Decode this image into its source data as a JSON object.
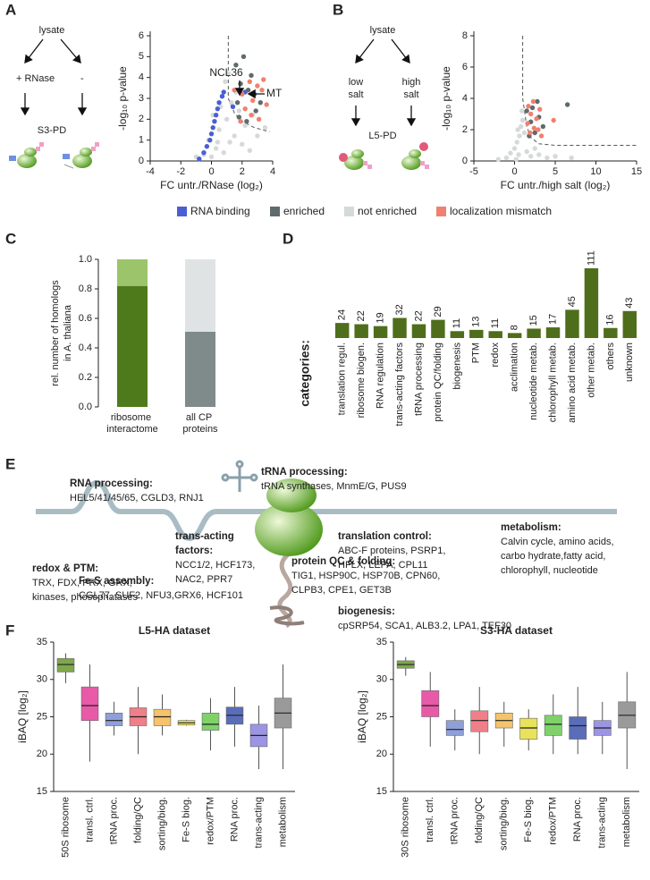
{
  "panel_labels": [
    "A",
    "B",
    "C",
    "D",
    "E",
    "F"
  ],
  "diagram_a": {
    "top": "lysate",
    "left": "+ RNase",
    "right": "-",
    "bottom": "S3-PD"
  },
  "diagram_b": {
    "top": "lysate",
    "left": [
      "low",
      "salt"
    ],
    "right": [
      "high",
      "salt"
    ],
    "bottom": "L5-PD"
  },
  "diagram_e": {
    "nodes": [
      {
        "title": [
          "RNA processing:"
        ],
        "body": [
          "HEL5/41/45/65, CGLD3, RNJ1"
        ]
      },
      {
        "title": [
          "tRNA processing:"
        ],
        "body": [
          "tRNA synthases, MnmE/G, PUS9"
        ]
      },
      {
        "title": [
          "metabolism:"
        ],
        "body": [
          "Calvin cycle, amino acids,",
          "carbo hydrate,fatty acid,",
          "chlorophyll, nucleotide"
        ]
      },
      {
        "title": [
          "trans-acting",
          "factors:"
        ],
        "body": [
          "NCC1/2, HCF173,",
          "NAC2, PPR7"
        ]
      },
      {
        "title": [
          "translation control:"
        ],
        "body": [
          "ABC-F proteins, PSRP1,",
          "HFLX, LEPA, CPL11"
        ]
      },
      {
        "title": [
          "redox & PTM:"
        ],
        "body": [
          "TRX, FDX, PRX, GRX,",
          "kinases, phosophatases"
        ]
      },
      {
        "title": [
          "protein QC & folding:"
        ],
        "body": [
          "TIG1, HSP90C, HSP70B, CPN60,",
          "CLPB3, CPE1, GET3B"
        ]
      },
      {
        "title": [
          "Fe-S assembly:"
        ],
        "body": [
          "CGL77, SUF2, NFU3,GRX6, HCF101"
        ]
      },
      {
        "title": [
          "biogenesis:"
        ],
        "body": [
          "cpSRP54, SCA1, ALB3.2, LPA1, TEF30"
        ]
      }
    ]
  },
  "chart_data": [
    {
      "type": "scatter",
      "xlabel": "FC untr./RNase (log₂)",
      "ylabel": "-log₁₀ p-value",
      "xlim": [
        -4,
        4
      ],
      "xticks": [
        -4,
        -2,
        0,
        2,
        4
      ],
      "ylim": [
        0,
        6
      ],
      "yticks": [
        0,
        1,
        2,
        3,
        4,
        5,
        6
      ],
      "annotations": [
        "NCL36",
        "MT"
      ],
      "threshold": {
        "x": [
          1.1,
          1.1,
          1.5,
          2,
          2.8,
          3.8
        ],
        "y": [
          6,
          3,
          2.3,
          1.9,
          1.6,
          1.4
        ]
      },
      "series": [
        {
          "name": "RNA binding",
          "color": "#4a5fd4",
          "x": [
            -0.8,
            -0.5,
            -0.3,
            -0.1,
            0,
            0.1,
            0.2,
            0.3,
            0.4,
            0.5,
            0.7,
            0.8,
            2.2,
            2.8,
            1.4
          ],
          "y": [
            0.1,
            0.4,
            0.7,
            1.0,
            1.3,
            1.6,
            1.9,
            2.2,
            2.5,
            2.8,
            3.1,
            3.3,
            3.3,
            3.2,
            2.6
          ]
        },
        {
          "name": "enriched",
          "color": "#5f6b6b",
          "x": [
            2.1,
            1.6,
            1.9,
            2.4,
            1.7,
            2.9,
            2.3,
            3.2,
            2.6,
            1.8
          ],
          "y": [
            5,
            4.6,
            3.7,
            3.4,
            2.8,
            2.4,
            1.9,
            2.8,
            4.1,
            2.1
          ]
        },
        {
          "name": "not enriched",
          "color": "#d5d9d9",
          "x": [
            -0.5,
            0,
            0.3,
            0.8,
            1.2,
            1.5,
            2,
            2.5,
            0.5,
            1,
            1.3,
            0.7,
            1.8,
            2.2,
            -0.2,
            0.1,
            0.9,
            1.6,
            3,
            3.5,
            0.4,
            -1,
            2.7,
            1.1,
            0.6
          ],
          "y": [
            0.3,
            0.2,
            0.6,
            0.4,
            0.9,
            1.2,
            0.8,
            0.5,
            1.5,
            2,
            2.8,
            3.1,
            2.4,
            1.7,
            1,
            2.2,
            3.8,
            3.3,
            1.2,
            1.6,
            0.9,
            0.2,
            2.2,
            4.2,
            2.6
          ]
        },
        {
          "name": "localization mismatch",
          "color": "#f08070",
          "x": [
            1.5,
            2.0,
            2.5,
            3.0,
            3.3,
            2.7,
            3.6,
            2.2,
            3.1,
            1.9,
            2.6,
            3.4
          ],
          "y": [
            3.4,
            3.2,
            3.8,
            3.6,
            3.4,
            2.9,
            2.7,
            2.5,
            2.0,
            1.9,
            2.2,
            3.9
          ]
        }
      ]
    },
    {
      "type": "scatter",
      "xlabel": "FC untr./high salt (log₂)",
      "ylabel": "-log₁₀ p-value",
      "xlim": [
        -5,
        15
      ],
      "xticks": [
        -5,
        0,
        5,
        10,
        15
      ],
      "ylim": [
        0,
        8
      ],
      "yticks": [
        0,
        2,
        4,
        6,
        8
      ],
      "threshold": {
        "x": [
          1,
          1,
          1.5,
          2,
          3,
          5,
          15
        ],
        "y": [
          8,
          4,
          2.2,
          1.5,
          1.1,
          1,
          1
        ]
      },
      "series": [
        {
          "color": "#5f6b6b",
          "x": [
            1.5,
            2,
            2.5,
            3,
            1.8,
            2.2,
            3.5,
            6.5,
            2.8
          ],
          "y": [
            3.2,
            2.5,
            1.8,
            2.8,
            1.6,
            3.4,
            2.2,
            3.6,
            3.8
          ]
        },
        {
          "color": "#d5d9d9",
          "x": [
            -1,
            -0.5,
            0,
            0.3,
            0.6,
            0.8,
            1,
            0.5,
            1.5,
            2,
            3,
            4,
            5,
            7,
            1.2,
            0.2,
            -2,
            2.5,
            0.9,
            0.4
          ],
          "y": [
            0.2,
            0.5,
            0.8,
            1.2,
            1.6,
            2.2,
            2.6,
            0.4,
            0.6,
            0.3,
            0.4,
            0.2,
            0.3,
            0.2,
            1.8,
            0.1,
            0.1,
            0.8,
            3.2,
            2.0
          ]
        },
        {
          "color": "#f08070",
          "x": [
            1.6,
            2,
            2.4,
            2.7,
            3.1,
            1.9,
            2.3,
            3.3,
            4.8,
            1.7,
            2.9
          ],
          "y": [
            2.4,
            3,
            2.1,
            2.7,
            3.3,
            1.8,
            3.8,
            1.6,
            2.6,
            3.5,
            2.0
          ]
        }
      ]
    },
    {
      "type": "stacked_bar",
      "ylabel": [
        "rel. number of homologs",
        "in A. thaliana"
      ],
      "categories": [
        "ribosome interactome",
        "all CP proteins"
      ],
      "ylim": [
        0,
        1
      ],
      "yticks": [
        {
          "value": 0,
          "label": "0.0"
        },
        0.2,
        0.4,
        0.6,
        0.8,
        {
          "value": 1,
          "label": "1.0"
        }
      ],
      "series": [
        {
          "values": [
            0.82,
            0.51
          ],
          "color": [
            "#4f7a1c",
            "#7f8a8a"
          ]
        },
        {
          "values": [
            0.18,
            0.49
          ],
          "color": [
            "#9cc46a",
            "#dfe3e3"
          ]
        }
      ]
    },
    {
      "type": "bar",
      "xlabel": "categories:",
      "color": "#4f6e1c",
      "categories": [
        "translation regul.",
        "ribosome biogen.",
        "RNA regulation",
        "trans-acting factors",
        "tRNA processing",
        "protein QC/folding",
        "biogenesis",
        "PTM",
        "redox",
        "acclimation",
        "nucleotide metab.",
        "chlorophyll metab.",
        "amino acid metab.",
        "other metab.",
        "others",
        "unknown"
      ],
      "values": [
        24,
        22,
        19,
        32,
        22,
        29,
        11,
        13,
        11,
        8,
        15,
        17,
        45,
        111,
        16,
        43
      ]
    },
    {
      "type": "box",
      "title": "L5-HA dataset",
      "ylabel": "iBAQ [log₂]",
      "ylim": [
        15,
        35
      ],
      "yticks": [
        15,
        20,
        25,
        30,
        35
      ],
      "categories": [
        "50S ribosome",
        "transl. ctrl.",
        "tRNA proc.",
        "folding/QC",
        "sorting/biog.",
        "Fe-S biog.",
        "redox/PTM",
        "RNA proc.",
        "trans-acting",
        "metabolism"
      ],
      "colors": [
        "#7fa84a",
        "#e85aa8",
        "#8f9fd8",
        "#f07f8a",
        "#f5c36b",
        "#e8e35a",
        "#7fd26a",
        "#5a6db8",
        "#9c95e3",
        "#9a9a9a"
      ],
      "boxes": [
        {
          "low": 29.5,
          "q1": 31,
          "median": 32,
          "q3": 32.8,
          "high": 33.5
        },
        {
          "low": 19,
          "q1": 24.5,
          "median": 26.5,
          "q3": 29,
          "high": 32
        },
        {
          "low": 22.5,
          "q1": 23.8,
          "median": 24.5,
          "q3": 25.5,
          "high": 27
        },
        {
          "low": 20,
          "q1": 23.8,
          "median": 25,
          "q3": 26.2,
          "high": 29
        },
        {
          "low": 22.5,
          "q1": 23.8,
          "median": 25,
          "q3": 26,
          "high": 28
        },
        {
          "low": 23.8,
          "q1": 23.9,
          "median": 24.2,
          "q3": 24.5,
          "high": 24.6
        },
        {
          "low": 20.5,
          "q1": 23.2,
          "median": 24,
          "q3": 25.5,
          "high": 27.5
        },
        {
          "low": 21,
          "q1": 24,
          "median": 25.2,
          "q3": 26.3,
          "high": 29
        },
        {
          "low": 18,
          "q1": 21,
          "median": 22.5,
          "q3": 24,
          "high": 26.5
        },
        {
          "low": 18,
          "q1": 23.5,
          "median": 25.5,
          "q3": 27.5,
          "high": 32
        }
      ]
    },
    {
      "type": "box",
      "title": "S3-HA dataset",
      "ylabel": "iBAQ [log₂]",
      "ylim": [
        15,
        35
      ],
      "yticks": [
        15,
        20,
        25,
        30,
        35
      ],
      "categories": [
        "30S ribosome",
        "transl. ctrl.",
        "tRNA proc.",
        "folding/QC",
        "sorting/biog.",
        "Fe-S biog.",
        "redox/PTM",
        "RNA proc.",
        "trans-acting",
        "metabolism"
      ],
      "colors": [
        "#7fa84a",
        "#e85aa8",
        "#8f9fd8",
        "#f07f8a",
        "#f5c36b",
        "#e8e35a",
        "#7fd26a",
        "#5a6db8",
        "#9c95e3",
        "#9a9a9a"
      ],
      "boxes": [
        {
          "low": 30.5,
          "q1": 31.5,
          "median": 32,
          "q3": 32.5,
          "high": 33
        },
        {
          "low": 21,
          "q1": 25,
          "median": 26.5,
          "q3": 28.5,
          "high": 31
        },
        {
          "low": 20.5,
          "q1": 22.5,
          "median": 23.3,
          "q3": 24.5,
          "high": 26
        },
        {
          "low": 20,
          "q1": 23,
          "median": 24.5,
          "q3": 25.8,
          "high": 29
        },
        {
          "low": 21,
          "q1": 23.5,
          "median": 24.5,
          "q3": 25.5,
          "high": 27
        },
        {
          "low": 20.5,
          "q1": 22,
          "median": 23.5,
          "q3": 24.8,
          "high": 26
        },
        {
          "low": 20,
          "q1": 22.5,
          "median": 24,
          "q3": 25.2,
          "high": 28
        },
        {
          "low": 20,
          "q1": 22,
          "median": 23.8,
          "q3": 25,
          "high": 29
        },
        {
          "low": 20,
          "q1": 22.5,
          "median": 23.5,
          "q3": 24.5,
          "high": 27
        },
        {
          "low": 18,
          "q1": 23.5,
          "median": 25.2,
          "q3": 27,
          "high": 31
        }
      ]
    }
  ]
}
